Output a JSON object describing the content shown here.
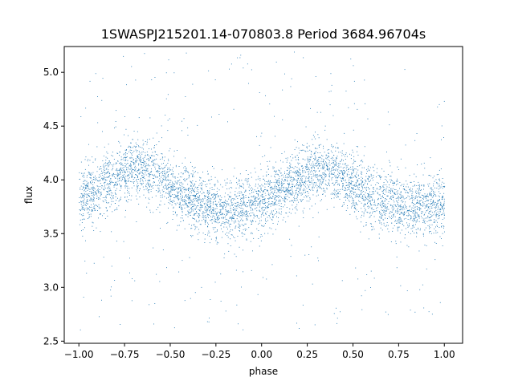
{
  "chart_data": {
    "type": "scatter",
    "title": "1SWASPJ215201.14-070803.8 Period 3684.96704s",
    "xlabel": "phase",
    "ylabel": "flux",
    "xlim": [
      -1.08,
      1.1
    ],
    "ylim": [
      2.48,
      5.24
    ],
    "xticks": [
      -1.0,
      -0.75,
      -0.5,
      -0.25,
      0.0,
      0.25,
      0.5,
      0.75,
      1.0
    ],
    "xtick_labels": [
      "−1.00",
      "−0.75",
      "−0.50",
      "−0.25",
      "0.00",
      "0.25",
      "0.50",
      "0.75",
      "1.00"
    ],
    "yticks": [
      2.5,
      3.0,
      3.5,
      4.0,
      4.5,
      5.0
    ],
    "ytick_labels": [
      "2.5",
      "3.0",
      "3.5",
      "4.0",
      "4.5",
      "5.0"
    ],
    "grid": false,
    "legend": "none",
    "point_color": "#1f77b4",
    "series": [
      {
        "x_range": [
          -1.0,
          1.0
        ],
        "profile_phase": [
          -1.0,
          -0.9,
          -0.8,
          -0.7,
          -0.6,
          -0.5,
          -0.4,
          -0.3,
          -0.2,
          -0.1,
          0.0,
          0.1,
          0.2,
          0.3,
          0.4,
          0.5,
          0.6,
          0.7,
          0.8,
          0.9,
          1.0
        ],
        "profile_flux": [
          3.85,
          3.92,
          4.02,
          4.12,
          4.08,
          3.95,
          3.85,
          3.75,
          3.72,
          3.75,
          3.82,
          3.9,
          4.0,
          4.1,
          4.08,
          3.95,
          3.85,
          3.8,
          3.75,
          3.75,
          3.8
        ],
        "scatter_sigma": 0.14,
        "outlier_range": [
          2.6,
          5.2
        ]
      }
    ]
  }
}
